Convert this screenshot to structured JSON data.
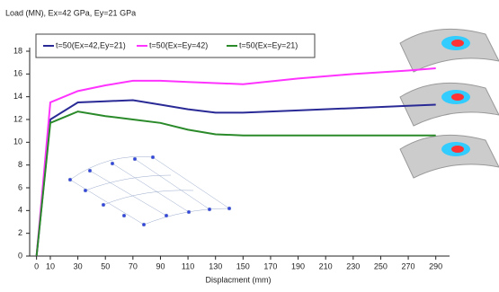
{
  "chart_data": {
    "type": "line",
    "title": "Load (MN),  Ex=42 GPa, Ey=21 GPa",
    "x_label": "Displacment (mm)",
    "x": [
      0,
      10,
      30,
      50,
      70,
      90,
      110,
      130,
      150,
      190,
      230,
      270,
      290
    ],
    "series": [
      {
        "name": "t=50(Ex=42,Ey=21)",
        "color": "#2a2a96",
        "values": [
          0,
          12,
          13.5,
          13.6,
          13.7,
          13.3,
          12.9,
          12.6,
          12.6,
          12.8,
          13.0,
          13.2,
          13.3
        ]
      },
      {
        "name": "t=50(Ex=Ey=42)",
        "color": "#ff33ff",
        "values": [
          0,
          13.5,
          14.5,
          15.0,
          15.4,
          15.4,
          15.3,
          15.2,
          15.1,
          15.6,
          16.0,
          16.3,
          16.5
        ]
      },
      {
        "name": "t=50(Ex=Ey=21)",
        "color": "#2a8a2a",
        "values": [
          0,
          11.7,
          12.7,
          12.3,
          12.0,
          11.7,
          11.1,
          10.7,
          10.6,
          10.6,
          10.6,
          10.6,
          10.6
        ]
      }
    ],
    "xlim": [
      -5,
      300
    ],
    "ylim": [
      0,
      18
    ],
    "xticks": [
      0,
      10,
      30,
      50,
      70,
      90,
      110,
      130,
      150,
      170,
      190,
      210,
      230,
      250,
      270,
      290
    ],
    "yticks": [
      0,
      2,
      4,
      6,
      8,
      10,
      12,
      14,
      16,
      18
    ],
    "legend": "top-left",
    "grid": false
  }
}
